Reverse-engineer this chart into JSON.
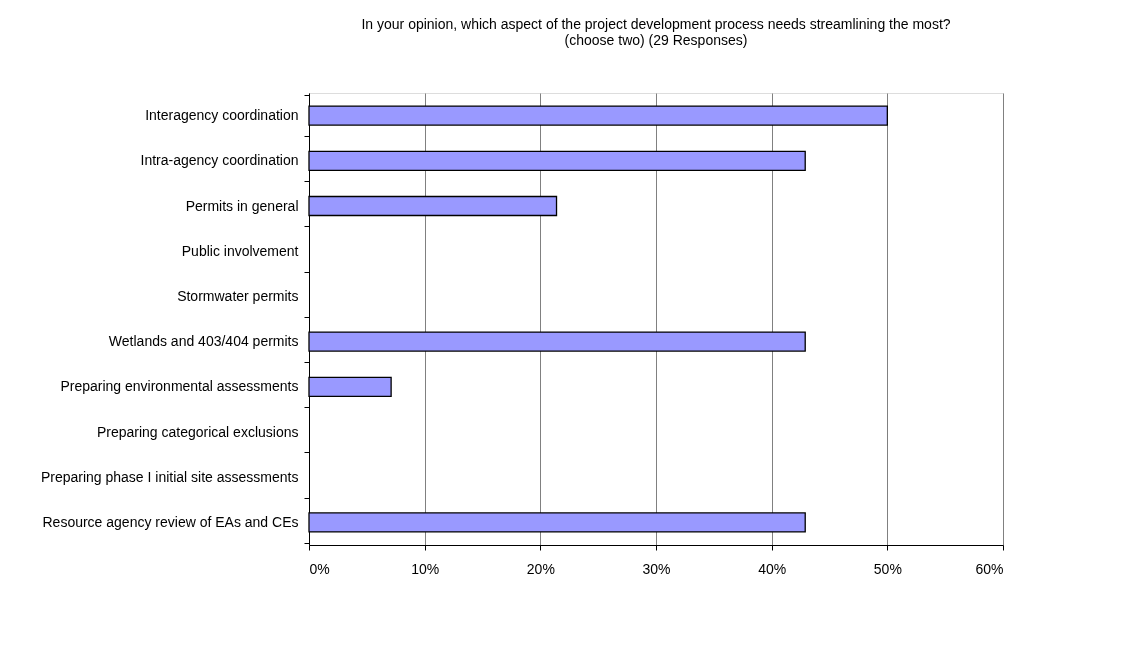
{
  "chart_data": {
    "type": "bar",
    "orientation": "horizontal",
    "title": [
      "In your opinion, which aspect of the project development process needs streamlining the most?",
      "(choose two) (29 Responses)"
    ],
    "categories": [
      "Interagency coordination",
      "Intra-agency coordination",
      "Permits in general",
      "Public involvement",
      "Stormwater permits",
      "Wetlands and 403/404 permits",
      "Preparing environmental assessments",
      "Preparing categorical exclusions",
      "Preparing phase I initial site assessments",
      "Resource agency review of EAs and CEs"
    ],
    "values": [
      50,
      42.9,
      21.4,
      0,
      0,
      42.9,
      7.1,
      0,
      0,
      42.9
    ],
    "color": "#9999ff",
    "xlim": [
      0,
      60
    ],
    "xticks": [
      {
        "value": 0,
        "label": "0%"
      },
      {
        "value": 10,
        "label": "10%"
      },
      {
        "value": 20,
        "label": "20%"
      },
      {
        "value": 30,
        "label": "30%"
      },
      {
        "value": 40,
        "label": "40%"
      },
      {
        "value": 50,
        "label": "50%"
      },
      {
        "value": 60,
        "label": "60%"
      }
    ],
    "grid": "x"
  }
}
